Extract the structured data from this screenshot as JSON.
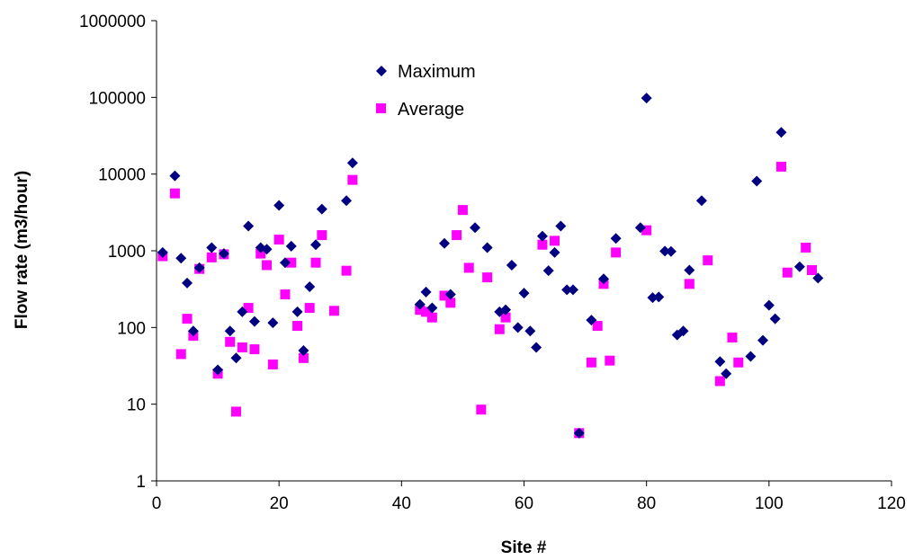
{
  "chart_data": {
    "type": "scatter",
    "title": "",
    "xlabel": "Site #",
    "ylabel": "Flow rate (m3/hour)",
    "xlim": [
      0,
      120
    ],
    "ylim": [
      1,
      1000000
    ],
    "y_scale": "log",
    "grid": false,
    "legend_position": "top-center",
    "x_ticks": [
      0,
      20,
      40,
      60,
      80,
      100,
      120
    ],
    "x_tick_labels": [
      "0",
      "20",
      "40",
      "60",
      "80",
      "100",
      "120"
    ],
    "y_ticks": [
      1,
      10,
      100,
      1000,
      10000,
      100000,
      1000000
    ],
    "y_tick_labels": [
      "1",
      "10",
      "100",
      "1000",
      "10000",
      "100000",
      "1000000"
    ],
    "series": [
      {
        "name": "Maximum",
        "marker": "diamond",
        "color": "#000080",
        "points": [
          [
            1,
            950
          ],
          [
            3,
            9500
          ],
          [
            4,
            800
          ],
          [
            5,
            380
          ],
          [
            6,
            90
          ],
          [
            7,
            600
          ],
          [
            9,
            1100
          ],
          [
            10,
            28
          ],
          [
            11,
            920
          ],
          [
            12,
            90
          ],
          [
            13,
            40
          ],
          [
            14,
            160
          ],
          [
            15,
            2100
          ],
          [
            16,
            120
          ],
          [
            17,
            1100
          ],
          [
            18,
            1050
          ],
          [
            19,
            115
          ],
          [
            20,
            3900
          ],
          [
            21,
            700
          ],
          [
            22,
            1150
          ],
          [
            23,
            160
          ],
          [
            24,
            50
          ],
          [
            25,
            340
          ],
          [
            26,
            1200
          ],
          [
            27,
            3500
          ],
          [
            31,
            4500
          ],
          [
            32,
            14000
          ],
          [
            43,
            200
          ],
          [
            44,
            290
          ],
          [
            45,
            180
          ],
          [
            47,
            1250
          ],
          [
            48,
            270
          ],
          [
            52,
            2000
          ],
          [
            54,
            1100
          ],
          [
            56,
            160
          ],
          [
            57,
            170
          ],
          [
            58,
            650
          ],
          [
            59,
            100
          ],
          [
            60,
            280
          ],
          [
            61,
            90
          ],
          [
            62,
            55
          ],
          [
            63,
            1550
          ],
          [
            64,
            550
          ],
          [
            65,
            950
          ],
          [
            66,
            2100
          ],
          [
            67,
            310
          ],
          [
            68,
            310
          ],
          [
            69,
            4.2
          ],
          [
            71,
            125
          ],
          [
            73,
            430
          ],
          [
            75,
            1450
          ],
          [
            79,
            2000
          ],
          [
            80,
            98000
          ],
          [
            81,
            245
          ],
          [
            82,
            250
          ],
          [
            83,
            990
          ],
          [
            84,
            980
          ],
          [
            85,
            80
          ],
          [
            86,
            90
          ],
          [
            87,
            560
          ],
          [
            89,
            4500
          ],
          [
            92,
            36
          ],
          [
            93,
            25
          ],
          [
            97,
            42
          ],
          [
            98,
            8100
          ],
          [
            99,
            68
          ],
          [
            100,
            195
          ],
          [
            101,
            130
          ],
          [
            102,
            35000
          ],
          [
            105,
            620
          ],
          [
            108,
            440
          ]
        ]
      },
      {
        "name": "Average",
        "marker": "square",
        "color": "#FF00FF",
        "points": [
          [
            1,
            850
          ],
          [
            3,
            5600
          ],
          [
            4,
            45
          ],
          [
            5,
            130
          ],
          [
            6,
            78
          ],
          [
            7,
            580
          ],
          [
            9,
            820
          ],
          [
            10,
            25
          ],
          [
            11,
            900
          ],
          [
            12,
            65
          ],
          [
            13,
            8
          ],
          [
            14,
            55
          ],
          [
            15,
            180
          ],
          [
            16,
            52
          ],
          [
            17,
            920
          ],
          [
            18,
            650
          ],
          [
            19,
            33
          ],
          [
            20,
            1400
          ],
          [
            21,
            270
          ],
          [
            22,
            700
          ],
          [
            23,
            105
          ],
          [
            24,
            40
          ],
          [
            25,
            180
          ],
          [
            26,
            700
          ],
          [
            27,
            1600
          ],
          [
            29,
            165
          ],
          [
            31,
            550
          ],
          [
            32,
            8400
          ],
          [
            43,
            170
          ],
          [
            44,
            160
          ],
          [
            45,
            135
          ],
          [
            47,
            260
          ],
          [
            48,
            210
          ],
          [
            49,
            1600
          ],
          [
            50,
            3400
          ],
          [
            51,
            600
          ],
          [
            53,
            8.5
          ],
          [
            54,
            450
          ],
          [
            56,
            95
          ],
          [
            57,
            135
          ],
          [
            63,
            1200
          ],
          [
            65,
            1350
          ],
          [
            69,
            4.2
          ],
          [
            71,
            35
          ],
          [
            72,
            105
          ],
          [
            73,
            370
          ],
          [
            74,
            37
          ],
          [
            75,
            950
          ],
          [
            80,
            1850
          ],
          [
            87,
            370
          ],
          [
            90,
            750
          ],
          [
            92,
            20
          ],
          [
            94,
            74
          ],
          [
            95,
            35
          ],
          [
            102,
            12500
          ],
          [
            103,
            520
          ],
          [
            106,
            1100
          ],
          [
            107,
            560
          ]
        ]
      }
    ]
  }
}
